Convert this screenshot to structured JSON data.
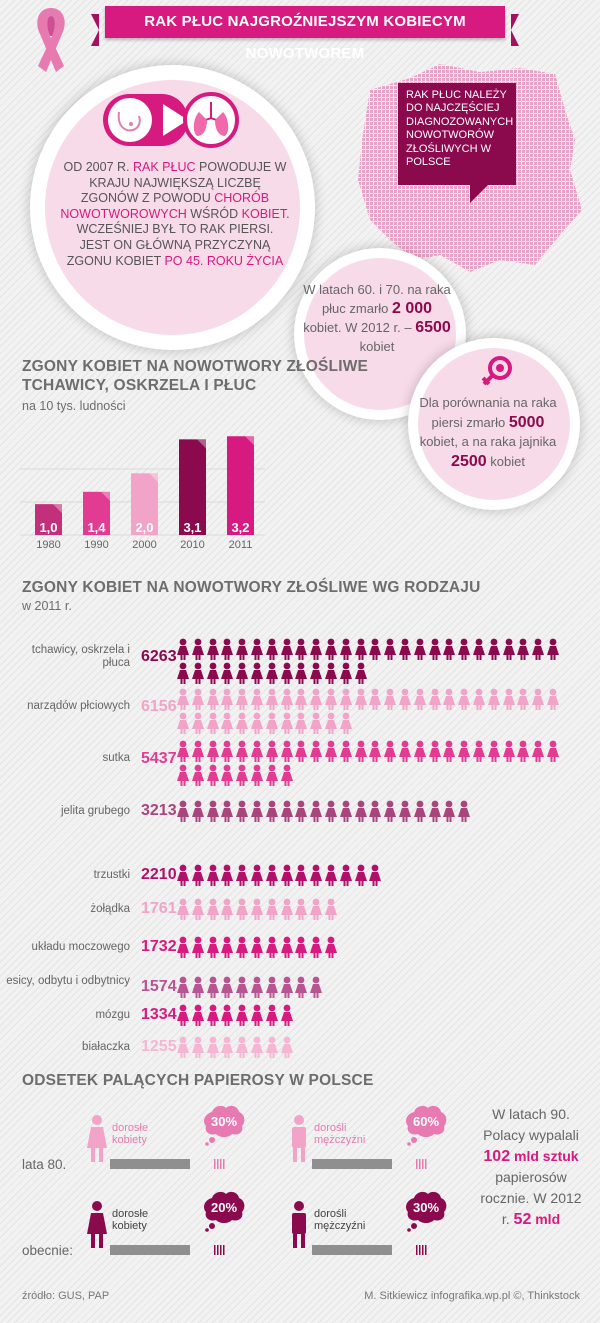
{
  "header": {
    "title": "RAK PŁUC NAJGROŹNIEJSZYM KOBIECYM NOWOTWOREM"
  },
  "intro": {
    "p1": "OD 2007 R. ",
    "p2": "RAK PŁUC",
    "p3": " POWODUJE W KRAJU NAJWIĘKSZĄ LICZBĘ ZGONÓW Z POWODU ",
    "p4": "CHORÓB NOWOTWOROWYCH",
    "p5": " WŚRÓD ",
    "p6": "KOBIET",
    "p7": ". WCZEŚNIEJ BYŁ TO RAK PIERSI. JEST ON GŁÓWNĄ PRZYCZYNĄ ZGONU KOBIET ",
    "p8": "PO 45. ROKU ŻYCIA"
  },
  "map_note": "RAK PŁUC NALEŻY DO NAJCZĘŚCIEJ DIAGNOZOWANYCH NOWOTWORÓW ZŁOŚLIWYCH W POLSCE",
  "stat1": {
    "a": "W latach 60. i 70. na raka płuc zmarło ",
    "b": "2 000",
    "c": " kobiet. W 2012 r. – ",
    "d": "6500",
    "e": " kobiet"
  },
  "stat2": {
    "a": "Dla porównania na raka piersi zmarło ",
    "b": "5000",
    "c": " kobiet, a na raka jajnika ",
    "d": "2500",
    "e": " kobiet"
  },
  "section1": {
    "title_line1": "ZGONY KOBIET NA NOWOTWORY ZŁOŚLIWE",
    "title_line2": "TCHAWICY, OSKRZELA I PŁUC",
    "subtitle": "na 10 tys. ludności"
  },
  "section2": {
    "title": "ZGONY KOBIET NA NOWOTWORY ZŁOŚLIWE WG RODZAJU",
    "subtitle": "w 2011 r."
  },
  "section3": {
    "title": "ODSETEK PALĄCYCH PAPIEROSY W POLSCE"
  },
  "chart_data": [
    {
      "type": "bar",
      "title": "ZGONY KOBIET NA NOWOTWORY ZŁOŚLIWE TCHAWICY, OSKRZELA I PŁUC",
      "subtitle": "na 10 tys. ludności",
      "categories": [
        "1980",
        "1990",
        "2000",
        "2010",
        "2011"
      ],
      "values": [
        1.0,
        1.4,
        2.0,
        3.1,
        3.2
      ],
      "labels": [
        "1,0",
        "1,4",
        "2,0",
        "3,1",
        "3,2"
      ],
      "colors": [
        "#c2307b",
        "#e23b92",
        "#f2a3c8",
        "#8b0a4e",
        "#d61a7f"
      ],
      "ylim": [
        0,
        3.5
      ]
    },
    {
      "type": "bar",
      "title": "ZGONY KOBIET NA NOWOTWORY ZŁOŚLIWE WG RODZAJU",
      "subtitle": "w 2011 r.",
      "categories": [
        "tchawicy, oskrzela i płuca",
        "narządów płciowych",
        "sutka",
        "jelita grubego",
        "trzustki",
        "żołądka",
        "układu moczowego",
        "esicy, odbytu i odbytnicy",
        "mózgu",
        "białaczka"
      ],
      "values": [
        6263,
        6156,
        5437,
        3213,
        2210,
        1761,
        1732,
        1574,
        1334,
        1255
      ],
      "colors": [
        "#8b0a4e",
        "#f2a3c8",
        "#e23b92",
        "#a8457c",
        "#b0106a",
        "#f2a3c8",
        "#d61a7f",
        "#b85491",
        "#d61a7f",
        "#f5b6d4"
      ]
    },
    {
      "type": "bar",
      "title": "ODSETEK PALĄCYCH PAPIEROSY W POLSCE",
      "categories": [
        "lata 80.",
        "obecnie:"
      ],
      "series": [
        {
          "name": "dorosłe kobiety",
          "values": [
            30,
            20
          ]
        },
        {
          "name": "dorośli mężczyźni",
          "values": [
            60,
            30
          ]
        }
      ],
      "labels": [
        "30%",
        "20%",
        "60%",
        "30%"
      ],
      "ylim": [
        0,
        100
      ]
    }
  ],
  "smoking_note": {
    "a": "W latach 90. Polacy wypalali ",
    "b": "102",
    "c": " mld sztuk",
    "d": " papierosów rocznie. W 2012 r. ",
    "e": "52",
    "f": " mld"
  },
  "footer": {
    "source": "źródło: GUS, PAP",
    "credit": "M. Sitkiewicz infografika.wp.pl ©, Thinkstock"
  }
}
